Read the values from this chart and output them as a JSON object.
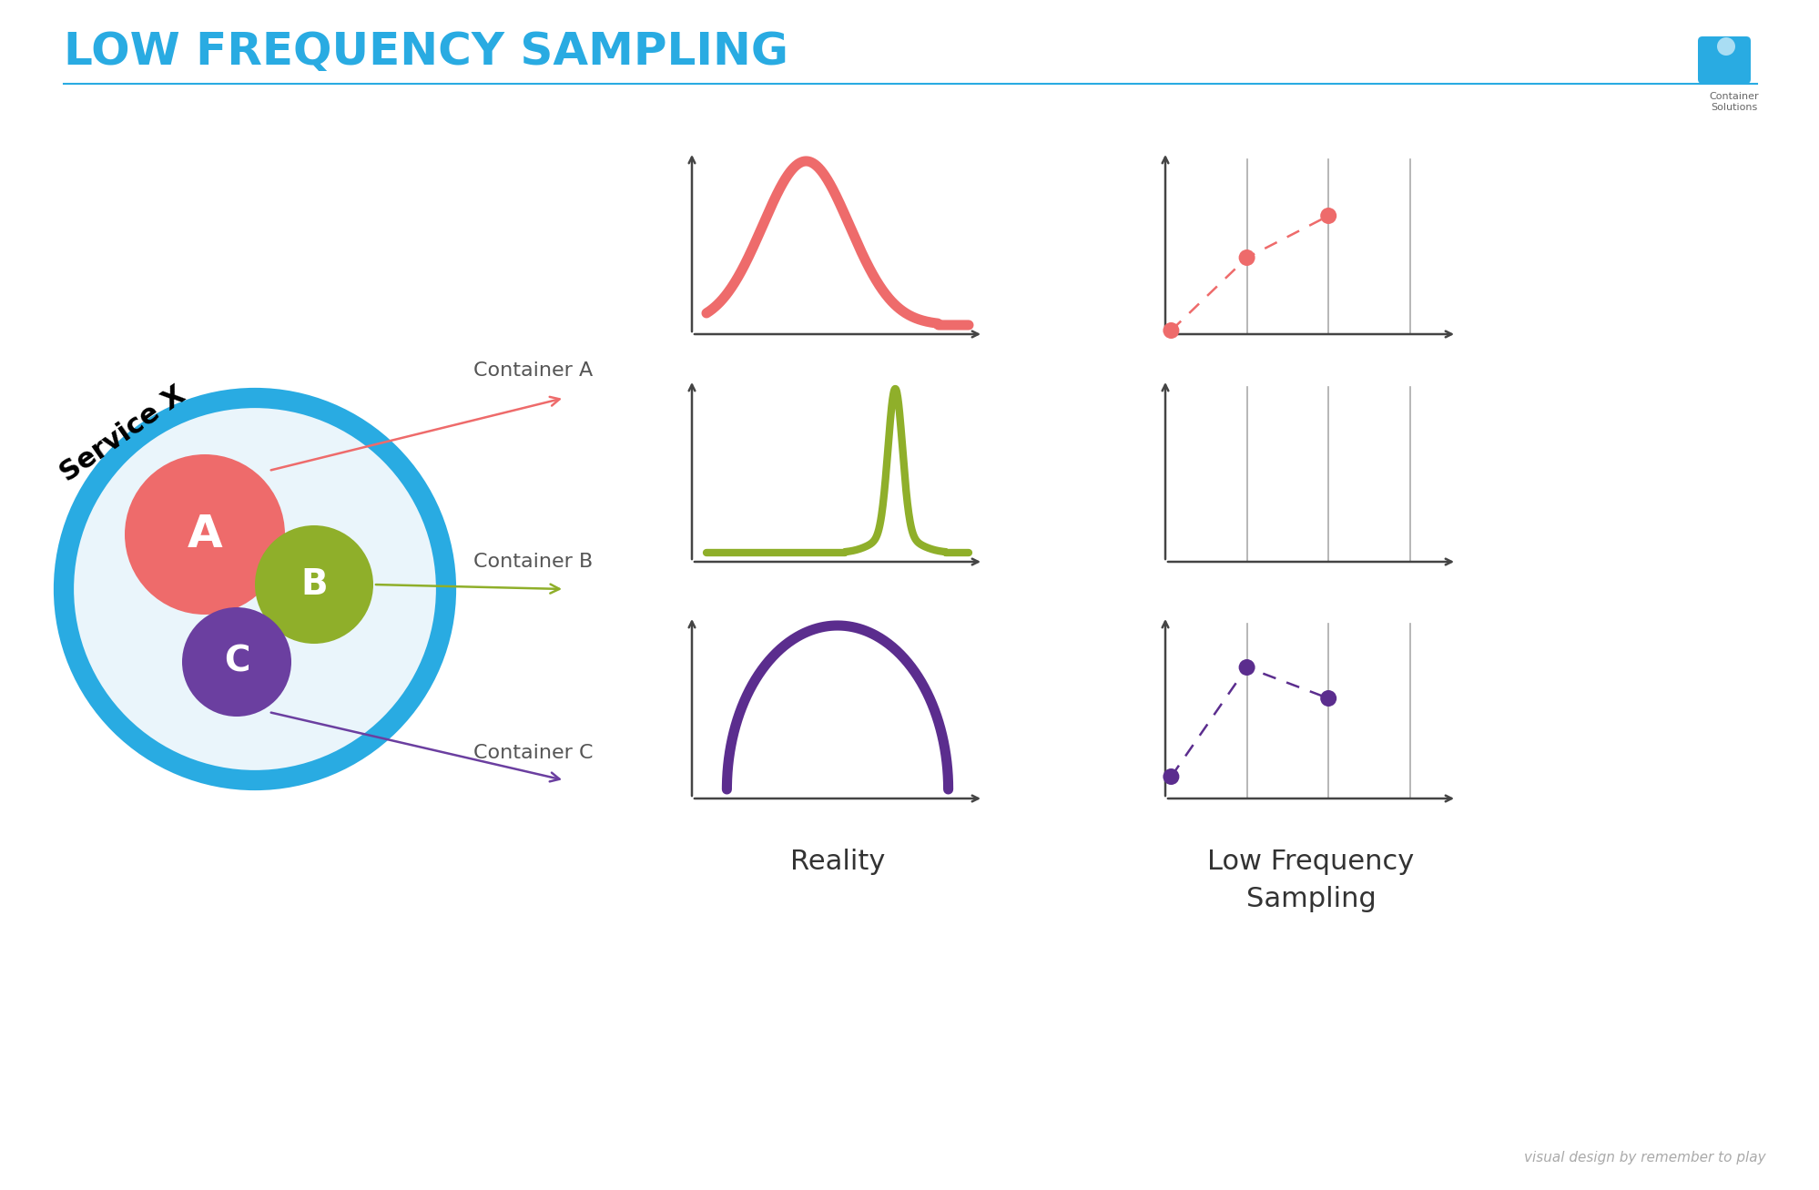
{
  "title": "LOW FREQUENCY SAMPLING",
  "title_color": "#29ABE2",
  "title_fontsize": 36,
  "background_color": "#FFFFFF",
  "service_x_label": "Service X",
  "container_labels": [
    "Container A",
    "Container B",
    "Container C"
  ],
  "container_arrow_colors": [
    "#EE6B6B",
    "#8FAF2A",
    "#6B3FA0"
  ],
  "container_circle_colors": [
    "#EE6B6B",
    "#8FAF2A",
    "#6B3FA0"
  ],
  "service_circle_color": "#29ABE2",
  "service_inner_color": "#EAF5FB",
  "reality_label": "Reality",
  "sampling_label": "Low Frequency\nSampling",
  "footer": "visual design by remember to play",
  "curve_a_color": "#EE6B6B",
  "curve_b_color": "#8FAF2A",
  "curve_c_color": "#5B2D8E",
  "sample_a_color": "#EE6B6B",
  "sample_c_color": "#5B2D8E",
  "axis_color": "#444444",
  "vline_color": "#AAAAAA",
  "title_line_color": "#29ABE2",
  "label_fontsize": 16,
  "chart_label_fontsize": 20
}
